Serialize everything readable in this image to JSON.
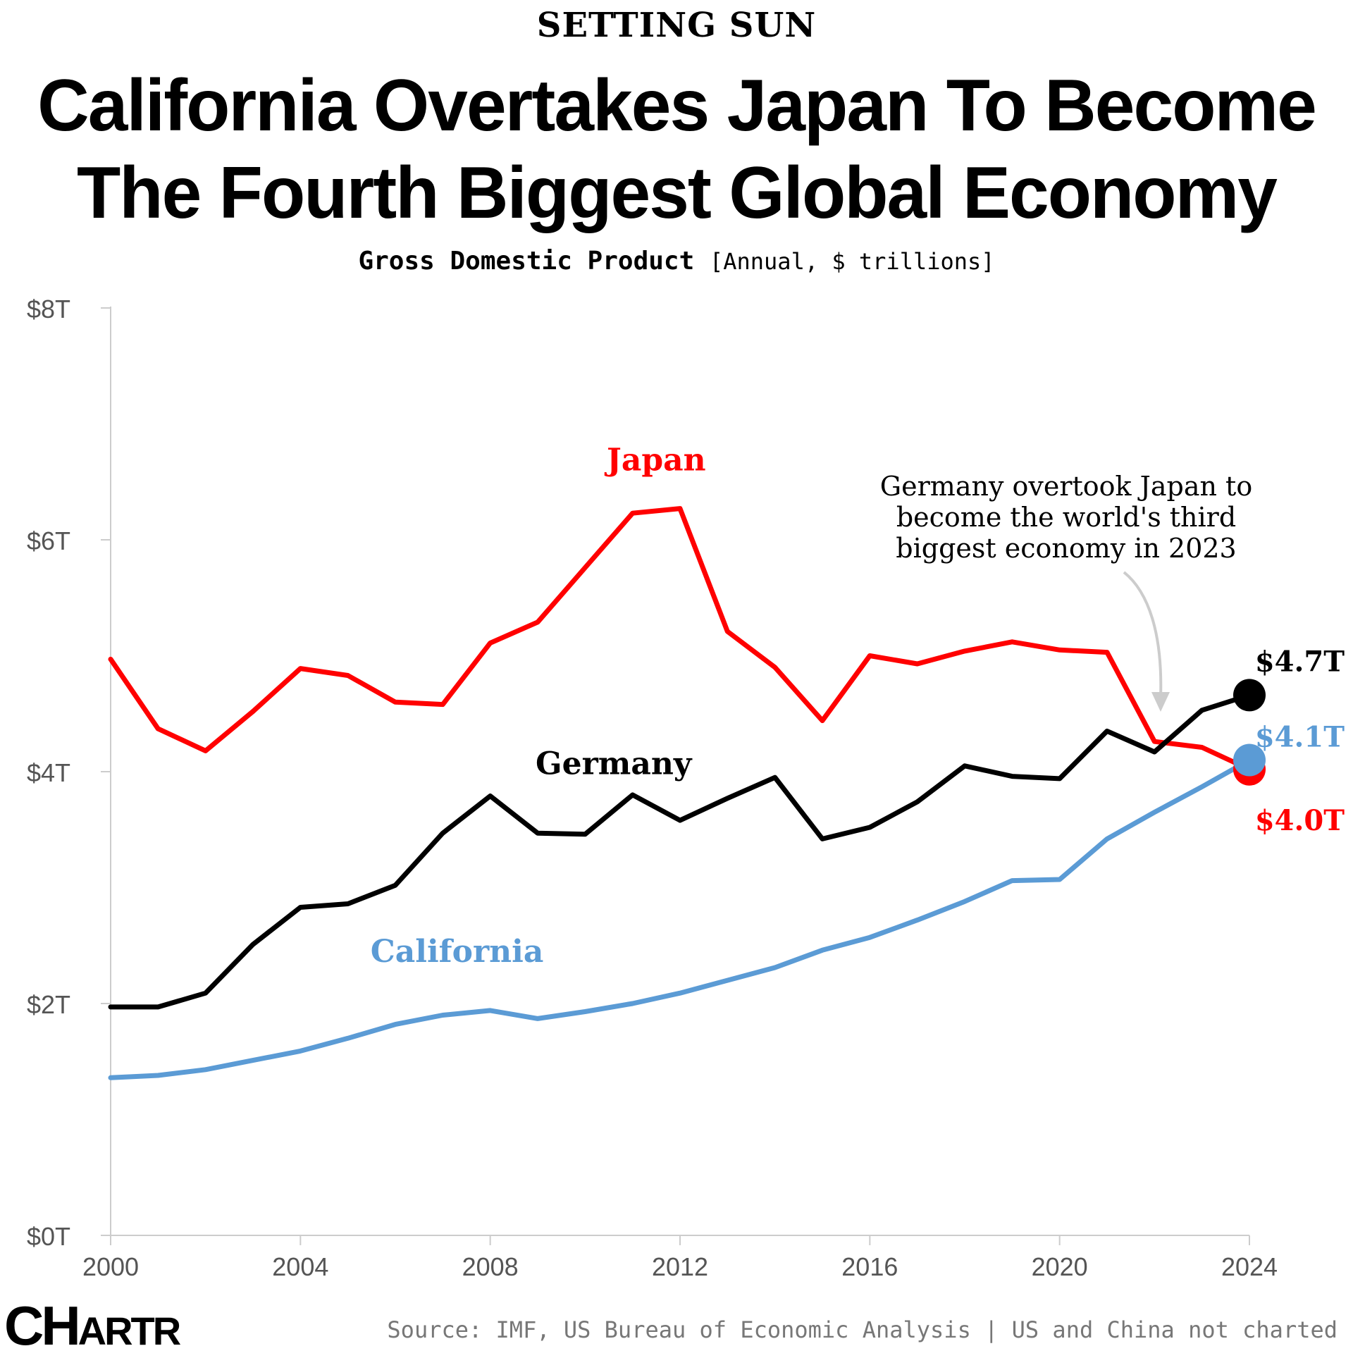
{
  "header": {
    "kicker": "SETTING SUN",
    "title_line1": "California Overtakes Japan To Become",
    "title_line2": "The Fourth Biggest Global Economy",
    "subtitle_main": "Gross Domestic Product",
    "subtitle_unit": "[Annual, $ trillions]"
  },
  "colors": {
    "japan": "#ff0000",
    "germany": "#000000",
    "california": "#5b9bd5",
    "axis": "#cccccc",
    "arrow": "#cccccc"
  },
  "chart_data": {
    "type": "line",
    "ylim": [
      0,
      8
    ],
    "xlim": [
      2000,
      2024
    ],
    "y_ticks": [
      0,
      2,
      4,
      6,
      8
    ],
    "y_tick_labels": [
      "$0T",
      "$2T",
      "$4T",
      "$6T",
      "$8T"
    ],
    "x_ticks": [
      2000,
      2004,
      2008,
      2012,
      2016,
      2020,
      2024
    ],
    "x_tick_labels": [
      "2000",
      "2004",
      "2008",
      "2012",
      "2016",
      "2020",
      "2024"
    ],
    "x": [
      2000,
      2001,
      2002,
      2003,
      2004,
      2005,
      2006,
      2007,
      2008,
      2009,
      2010,
      2011,
      2012,
      2013,
      2014,
      2015,
      2016,
      2017,
      2018,
      2019,
      2020,
      2021,
      2022,
      2023,
      2024
    ],
    "series": [
      {
        "name": "Japan",
        "key": "japan",
        "values": [
          4.97,
          4.37,
          4.18,
          4.52,
          4.89,
          4.83,
          4.6,
          4.58,
          5.11,
          5.29,
          5.76,
          6.23,
          6.27,
          5.21,
          4.9,
          4.44,
          5.0,
          4.93,
          5.04,
          5.12,
          5.05,
          5.03,
          4.26,
          4.21,
          4.02
        ],
        "end_label": "$4.0T"
      },
      {
        "name": "Germany",
        "key": "germany",
        "values": [
          1.97,
          1.97,
          2.09,
          2.51,
          2.83,
          2.86,
          3.02,
          3.47,
          3.79,
          3.47,
          3.46,
          3.8,
          3.58,
          3.77,
          3.95,
          3.42,
          3.52,
          3.74,
          4.05,
          3.96,
          3.94,
          4.35,
          4.17,
          4.53,
          4.66
        ],
        "end_label": "$4.7T"
      },
      {
        "name": "California",
        "key": "california",
        "values": [
          1.36,
          1.38,
          1.43,
          1.51,
          1.59,
          1.7,
          1.82,
          1.9,
          1.94,
          1.87,
          1.93,
          2.0,
          2.09,
          2.2,
          2.31,
          2.46,
          2.57,
          2.72,
          2.88,
          3.06,
          3.07,
          3.42,
          3.65,
          3.87,
          4.1
        ],
        "end_label": "$4.1T"
      }
    ],
    "annotation": {
      "lines": [
        "Germany overtook Japan to",
        "become the world's third",
        "biggest economy in 2023"
      ]
    }
  },
  "footer": {
    "logo_prefix": "CH",
    "logo_suffix": "ARTR",
    "source": "Source: IMF, US Bureau of Economic Analysis | US and China not charted"
  }
}
